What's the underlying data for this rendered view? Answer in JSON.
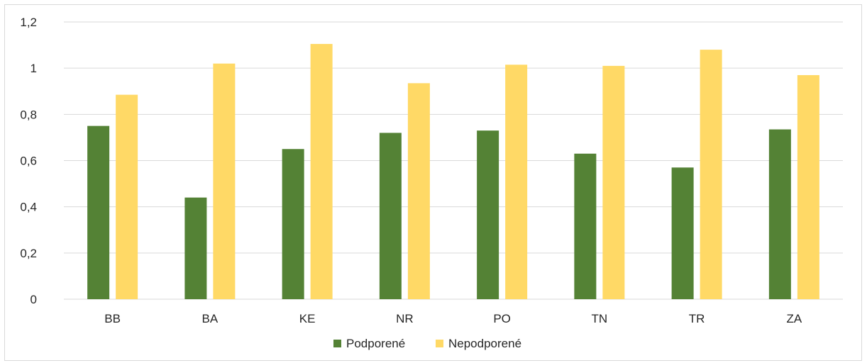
{
  "chart_data": {
    "type": "bar",
    "categories": [
      "BB",
      "BA",
      "KE",
      "NR",
      "PO",
      "TN",
      "TR",
      "ZA"
    ],
    "series": [
      {
        "name": "Podporené",
        "color": "#548235",
        "values": [
          0.75,
          0.44,
          0.65,
          0.72,
          0.73,
          0.63,
          0.57,
          0.735
        ]
      },
      {
        "name": "Nepodporené",
        "color": "#FFD966",
        "values": [
          0.885,
          1.02,
          1.105,
          0.935,
          1.015,
          1.01,
          1.08,
          0.97
        ]
      }
    ],
    "ylim": [
      0,
      1.2
    ],
    "yticks": [
      0,
      0.2,
      0.4,
      0.6,
      0.8,
      1,
      1.2
    ],
    "ytick_labels": [
      "0",
      "0,2",
      "0,4",
      "0,6",
      "0,8",
      "1",
      "1,2"
    ],
    "grid": true,
    "legend": "bottom",
    "gridline_color": "#d9d9d9"
  }
}
